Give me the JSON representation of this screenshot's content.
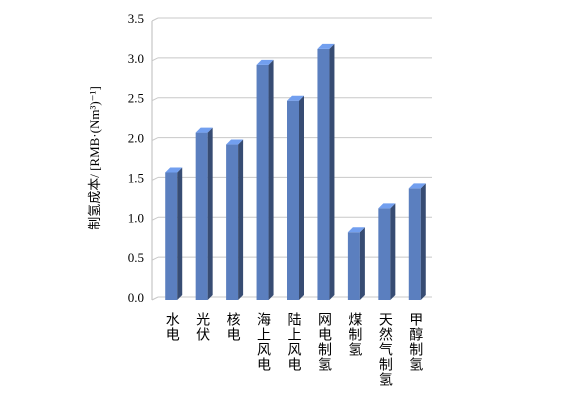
{
  "chart_data": {
    "type": "bar",
    "y_label": "制氢成本/ [RMB·(Nm³)⁻¹]",
    "categories": [
      "水电",
      "光伏",
      "核电",
      "海上风电",
      "陆上风电",
      "网电制氢",
      "煤制氢",
      "天然气制氢",
      "甲醇制氢"
    ],
    "values": [
      1.6,
      2.1,
      1.95,
      2.95,
      2.5,
      3.15,
      0.85,
      1.15,
      1.4
    ],
    "color": "#5b7fbf",
    "ylim": [
      0,
      3.5
    ],
    "yticks": [
      {
        "value": 0,
        "label": "0.0"
      },
      0.5,
      {
        "value": 1,
        "label": "1.0"
      },
      1.5,
      {
        "value": 2,
        "label": "2.0"
      },
      2.5,
      {
        "value": 3,
        "label": "3.0"
      },
      3.5
    ],
    "grid": true
  }
}
